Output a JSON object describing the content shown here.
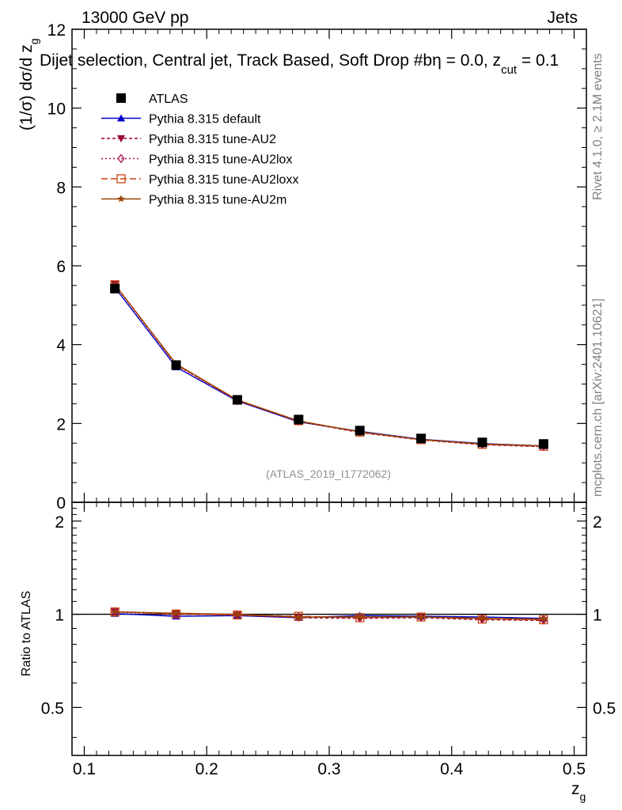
{
  "header": {
    "energy": "13000 GeV pp",
    "category": "Jets",
    "title_main": "Dijet selection, Central jet, Track Based, Soft Drop #b",
    "title_eta": "η = 0.0, z",
    "title_sub": "cut",
    "title_tail": " = 0.1",
    "analysis_id": "(ATLAS_2019_I1772062)"
  },
  "side_text": {
    "rivet": "Rivet 4.1.0, ≥ 2.1M events",
    "mcplots": "mcplots.cern.ch [arXiv:2401.10621]"
  },
  "colors": {
    "data": "#000000",
    "default": "#0000cc",
    "au2": "#990033",
    "au2lox": "#aa1155",
    "au2loxx": "#cc4411",
    "au2m": "#994400"
  },
  "chart_data": [
    {
      "type": "line",
      "panel": "main",
      "ylabel_parts": [
        "(1/σ) dσ/d z",
        "g"
      ],
      "ylim": [
        0,
        12
      ],
      "xlim": [
        0.09,
        0.51
      ],
      "yticks": [
        0,
        2,
        4,
        6,
        8,
        10,
        12
      ],
      "x": [
        0.125,
        0.175,
        0.225,
        0.275,
        0.325,
        0.375,
        0.425,
        0.475
      ],
      "series": [
        {
          "name": "ATLAS",
          "marker": "square",
          "values": [
            5.42,
            3.48,
            2.6,
            2.1,
            1.82,
            1.62,
            1.52,
            1.48
          ]
        },
        {
          "name": "Pythia 8.315 default",
          "marker": "triangle-up",
          "values": [
            5.45,
            3.43,
            2.57,
            2.04,
            1.8,
            1.6,
            1.49,
            1.43
          ]
        },
        {
          "name": "Pythia 8.315 tune-AU2",
          "marker": "triangle-down",
          "values": [
            5.53,
            3.5,
            2.59,
            2.05,
            1.77,
            1.58,
            1.46,
            1.41
          ]
        },
        {
          "name": "Pythia 8.315 tune-AU2lox",
          "marker": "diamond-open",
          "values": [
            5.51,
            3.48,
            2.58,
            2.06,
            1.78,
            1.59,
            1.47,
            1.42
          ]
        },
        {
          "name": "Pythia 8.315 tune-AU2loxx",
          "marker": "square-open",
          "values": [
            5.52,
            3.49,
            2.59,
            2.07,
            1.78,
            1.59,
            1.47,
            1.42
          ]
        },
        {
          "name": "Pythia 8.315 tune-AU2m",
          "marker": "star",
          "values": [
            5.52,
            3.51,
            2.6,
            2.06,
            1.79,
            1.59,
            1.48,
            1.43
          ]
        }
      ]
    },
    {
      "type": "line",
      "panel": "ratio",
      "ylabel": "Ratio to ATLAS",
      "xlabel_parts": [
        "z",
        "g"
      ],
      "ylim": [
        0.35,
        2.3
      ],
      "yscale": "log",
      "xlim": [
        0.09,
        0.51
      ],
      "yticks": [
        0.5,
        1,
        2
      ],
      "ytick_labels": [
        "0.5",
        "1",
        "2"
      ],
      "xticks": [
        0.1,
        0.2,
        0.3,
        0.4,
        0.5
      ],
      "xtick_labels": [
        "0.1",
        "0.2",
        "0.3",
        "0.4",
        "0.5"
      ],
      "x": [
        0.125,
        0.175,
        0.225,
        0.275,
        0.325,
        0.375,
        0.425,
        0.475
      ],
      "series": [
        {
          "name": "Pythia 8.315 default",
          "values": [
            1.005,
            0.985,
            0.99,
            0.975,
            0.99,
            0.985,
            0.98,
            0.97
          ]
        },
        {
          "name": "Pythia 8.315 tune-AU2",
          "values": [
            1.02,
            1.005,
            0.995,
            0.975,
            0.97,
            0.975,
            0.96,
            0.955
          ]
        },
        {
          "name": "Pythia 8.315 tune-AU2lox",
          "values": [
            1.015,
            1.0,
            0.995,
            0.98,
            0.975,
            0.98,
            0.965,
            0.96
          ]
        },
        {
          "name": "Pythia 8.315 tune-AU2loxx",
          "values": [
            1.018,
            1.002,
            0.995,
            0.985,
            0.975,
            0.98,
            0.965,
            0.96
          ]
        },
        {
          "name": "Pythia 8.315 tune-AU2m",
          "values": [
            1.018,
            1.008,
            1.0,
            0.98,
            0.98,
            0.98,
            0.97,
            0.965
          ]
        }
      ]
    }
  ]
}
